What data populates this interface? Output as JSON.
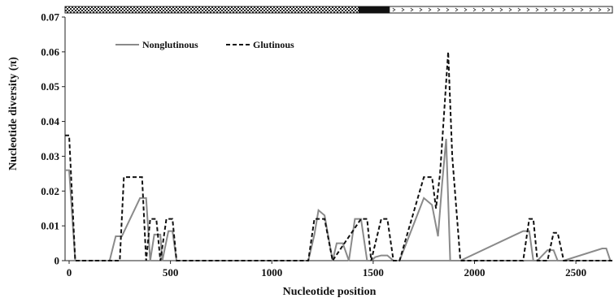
{
  "chart_data": {
    "type": "line",
    "title": "",
    "xlabel": "Nucleotide position",
    "ylabel": "Nucleotide diversity (π)",
    "xlim": [
      -20,
      2680
    ],
    "ylim": [
      0,
      0.07
    ],
    "x_ticks": [
      0,
      500,
      1000,
      1500,
      2000,
      2500
    ],
    "y_ticks": [
      0,
      0.01,
      0.02,
      0.03,
      0.04,
      0.05,
      0.06,
      0.07
    ],
    "x_tick_labels": [
      "0",
      "500",
      "1000",
      "1500",
      "2000",
      "2500"
    ],
    "y_tick_labels": [
      "0",
      "0.01",
      "0.02",
      "0.03",
      "0.04",
      "0.05",
      "0.06",
      "0.07"
    ],
    "grid": false,
    "legend_position": "top-left",
    "gene_structure_bar": {
      "segments": [
        {
          "type": "checkered",
          "start": -20,
          "end": 1430
        },
        {
          "type": "solid",
          "start": 1430,
          "end": 1580
        },
        {
          "type": "arrows",
          "start": 1580,
          "end": 2680
        }
      ]
    },
    "series": [
      {
        "name": "Nonglutinous",
        "style": "solid",
        "color": "#8a8a8a",
        "x": [
          -20,
          0,
          30,
          200,
          230,
          260,
          350,
          380,
          400,
          420,
          450,
          460,
          490,
          510,
          530,
          1180,
          1210,
          1230,
          1260,
          1300,
          1320,
          1350,
          1380,
          1410,
          1440,
          1470,
          1490,
          1510,
          1540,
          1570,
          1600,
          1630,
          1750,
          1790,
          1820,
          1840,
          1860,
          1880,
          1900,
          1930,
          2240,
          2270,
          2290,
          2310,
          2360,
          2390,
          2410,
          2440,
          2630,
          2650,
          2670
        ],
        "y": [
          0.026,
          0.026,
          0,
          0,
          0.007,
          0.007,
          0.018,
          0.018,
          0,
          0.0075,
          0.0075,
          0,
          0.0085,
          0.0085,
          0,
          0,
          0.0075,
          0.0145,
          0.013,
          0,
          0.005,
          0.005,
          0,
          0.012,
          0.012,
          0,
          0,
          0.001,
          0.0015,
          0.0015,
          0,
          0,
          0.018,
          0.016,
          0.007,
          0.022,
          0.035,
          0,
          0,
          0,
          0.0085,
          0.0085,
          0,
          0,
          0.003,
          0.003,
          0,
          0,
          0.0035,
          0.0035,
          0
        ]
      },
      {
        "name": "Glutinous",
        "style": "dashed",
        "color": "#111111",
        "x": [
          -20,
          0,
          30,
          250,
          270,
          360,
          380,
          400,
          430,
          450,
          480,
          510,
          530,
          1180,
          1210,
          1260,
          1300,
          1440,
          1470,
          1490,
          1540,
          1570,
          1600,
          1630,
          1750,
          1790,
          1810,
          1830,
          1870,
          1890,
          1930,
          2240,
          2270,
          2290,
          2310,
          2360,
          2390,
          2410,
          2440,
          2680
        ],
        "y": [
          0.036,
          0.036,
          0,
          0,
          0.024,
          0.024,
          0,
          0.012,
          0.012,
          0,
          0.012,
          0.012,
          0,
          0,
          0.012,
          0.012,
          0,
          0.012,
          0.012,
          0,
          0.012,
          0.012,
          0,
          0,
          0.024,
          0.024,
          0.015,
          0.025,
          0.06,
          0.03,
          0,
          0,
          0.012,
          0.012,
          0,
          0,
          0.008,
          0.008,
          0,
          0
        ]
      }
    ]
  }
}
